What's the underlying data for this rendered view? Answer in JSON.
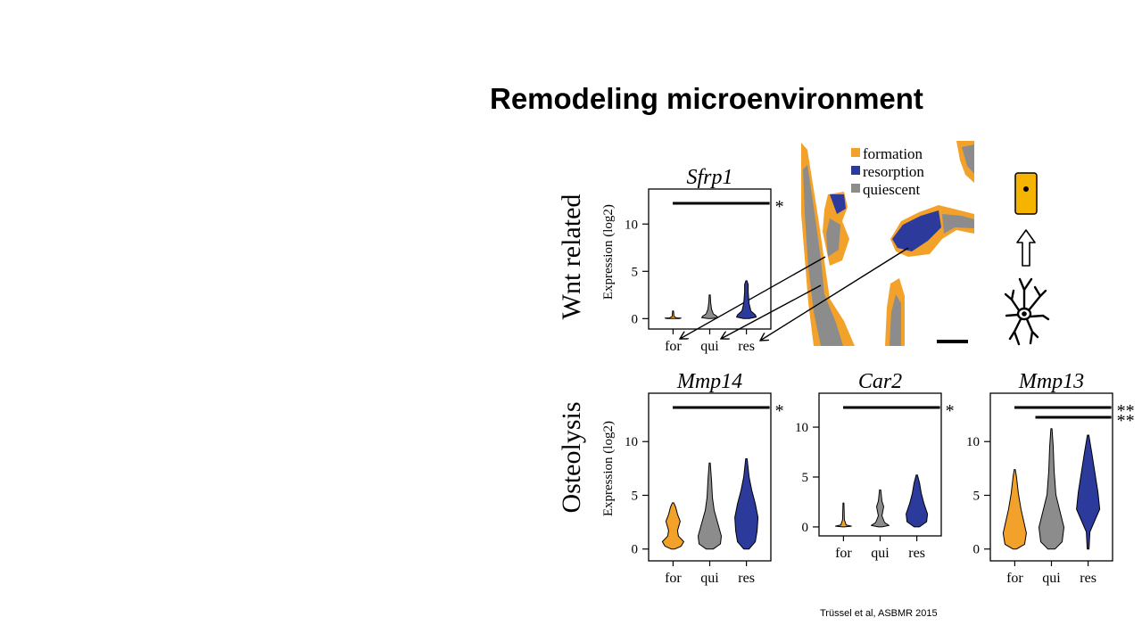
{
  "slide": {
    "title": "Remodeling microenvironment",
    "citation": "Trüssel et al, ASBMR 2015"
  },
  "rows": [
    {
      "label": "Wnt related"
    },
    {
      "label": "Osteolysis"
    }
  ],
  "colors": {
    "formation": "#f2a22b",
    "resorption": "#2b3a9b",
    "quiescent": "#8c8c8c",
    "cell_box": "#f5b400"
  },
  "legend": [
    {
      "label": "formation",
      "color": "#f2a22b"
    },
    {
      "label": "resorption",
      "color": "#2b3a9b"
    },
    {
      "label": "quiescent",
      "color": "#8c8c8c"
    }
  ],
  "icons": [
    "osteocyte-icon",
    "up-arrow-icon",
    "cell-icon"
  ],
  "chart_data": [
    {
      "type": "violin",
      "title": "Sfrp1",
      "ylabel": "Expression (log2)",
      "yticks": [
        0,
        5,
        10
      ],
      "categories": [
        "for",
        "qui",
        "res"
      ],
      "max_values": [
        0.8,
        2.5,
        4.0
      ],
      "significance": [
        {
          "from": "for",
          "to": "res",
          "label": "*"
        }
      ]
    },
    {
      "type": "violin",
      "title": "Mmp14",
      "ylabel": "Expression (log2)",
      "yticks": [
        0,
        5,
        10
      ],
      "categories": [
        "for",
        "qui",
        "res"
      ],
      "max_values": [
        4.3,
        8.0,
        8.4
      ],
      "significance": [
        {
          "from": "for",
          "to": "res",
          "label": "*"
        }
      ]
    },
    {
      "type": "violin",
      "title": "Car2",
      "ylabel": "",
      "yticks": [
        0,
        5,
        10
      ],
      "categories": [
        "for",
        "qui",
        "res"
      ],
      "max_values": [
        2.4,
        3.7,
        5.2
      ],
      "significance": [
        {
          "from": "for",
          "to": "res",
          "label": "*"
        }
      ]
    },
    {
      "type": "violin",
      "title": "Mmp13",
      "ylabel": "",
      "yticks": [
        0,
        5,
        10
      ],
      "categories": [
        "for",
        "qui",
        "res"
      ],
      "max_values": [
        7.4,
        11.2,
        10.6
      ],
      "significance": [
        {
          "from": "for",
          "to": "res",
          "label": "**"
        },
        {
          "from": "qui",
          "to": "res",
          "label": "**"
        }
      ]
    }
  ]
}
